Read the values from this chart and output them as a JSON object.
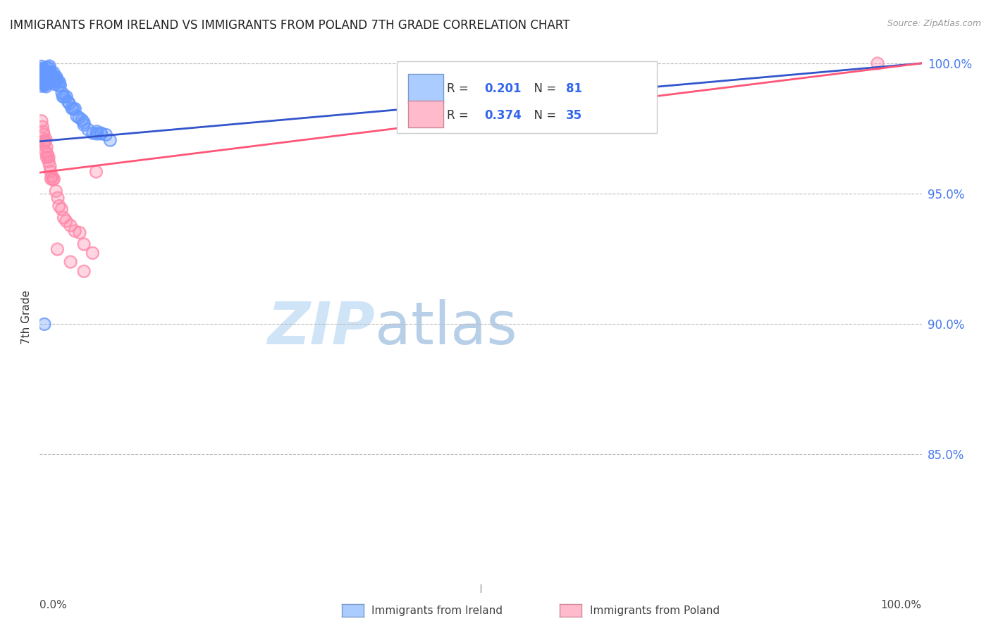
{
  "title": "IMMIGRANTS FROM IRELAND VS IMMIGRANTS FROM POLAND 7TH GRADE CORRELATION CHART",
  "source": "Source: ZipAtlas.com",
  "ylabel": "7th Grade",
  "ireland_R": 0.201,
  "ireland_N": 81,
  "poland_R": 0.374,
  "poland_N": 35,
  "ireland_color": "#6699ff",
  "poland_color": "#ff88aa",
  "ireland_line_color": "#3355cc",
  "poland_line_color": "#ff5577",
  "background_color": "#ffffff",
  "grid_color": "#bbbbbb",
  "xlim": [
    0.0,
    1.0
  ],
  "ylim": [
    0.8,
    1.005
  ],
  "yticks": [
    0.85,
    0.9,
    0.95,
    1.0
  ],
  "ireland_line_x0": 0.0,
  "ireland_line_y0": 0.97,
  "ireland_line_x1": 1.0,
  "ireland_line_y1": 1.0,
  "poland_line_x0": 0.0,
  "poland_line_y0": 0.958,
  "poland_line_x1": 1.0,
  "poland_line_y1": 1.0,
  "ireland_x": [
    0.001,
    0.001,
    0.002,
    0.002,
    0.002,
    0.002,
    0.003,
    0.003,
    0.003,
    0.003,
    0.004,
    0.004,
    0.004,
    0.004,
    0.004,
    0.005,
    0.005,
    0.005,
    0.005,
    0.005,
    0.006,
    0.006,
    0.006,
    0.006,
    0.007,
    0.007,
    0.007,
    0.008,
    0.008,
    0.008,
    0.008,
    0.009,
    0.009,
    0.009,
    0.01,
    0.01,
    0.01,
    0.011,
    0.011,
    0.011,
    0.012,
    0.012,
    0.013,
    0.013,
    0.014,
    0.014,
    0.015,
    0.015,
    0.016,
    0.016,
    0.017,
    0.018,
    0.018,
    0.019,
    0.02,
    0.021,
    0.022,
    0.023,
    0.025,
    0.026,
    0.028,
    0.03,
    0.032,
    0.034,
    0.036,
    0.038,
    0.04,
    0.042,
    0.045,
    0.048,
    0.05,
    0.055,
    0.06,
    0.065,
    0.07,
    0.075,
    0.08,
    0.05,
    0.065,
    0.07,
    0.005
  ],
  "ireland_y": [
    0.997,
    0.994,
    0.998,
    0.996,
    0.994,
    0.992,
    0.998,
    0.996,
    0.994,
    0.992,
    0.999,
    0.997,
    0.995,
    0.993,
    0.991,
    0.999,
    0.997,
    0.995,
    0.993,
    0.991,
    0.998,
    0.996,
    0.994,
    0.992,
    0.997,
    0.995,
    0.993,
    0.998,
    0.996,
    0.994,
    0.992,
    0.997,
    0.995,
    0.993,
    0.998,
    0.996,
    0.994,
    0.997,
    0.995,
    0.993,
    0.997,
    0.995,
    0.996,
    0.994,
    0.995,
    0.993,
    0.996,
    0.994,
    0.995,
    0.993,
    0.994,
    0.995,
    0.993,
    0.994,
    0.993,
    0.992,
    0.991,
    0.99,
    0.989,
    0.988,
    0.987,
    0.986,
    0.985,
    0.984,
    0.983,
    0.982,
    0.981,
    0.98,
    0.979,
    0.978,
    0.977,
    0.976,
    0.975,
    0.974,
    0.973,
    0.972,
    0.971,
    0.975,
    0.974,
    0.973,
    0.9
  ],
  "poland_x": [
    0.002,
    0.003,
    0.004,
    0.005,
    0.005,
    0.006,
    0.007,
    0.007,
    0.008,
    0.008,
    0.009,
    0.01,
    0.01,
    0.011,
    0.012,
    0.013,
    0.014,
    0.015,
    0.016,
    0.018,
    0.02,
    0.022,
    0.025,
    0.028,
    0.03,
    0.035,
    0.04,
    0.045,
    0.05,
    0.06,
    0.02,
    0.035,
    0.05,
    0.065,
    0.95
  ],
  "poland_y": [
    0.978,
    0.976,
    0.974,
    0.972,
    0.97,
    0.968,
    0.97,
    0.966,
    0.968,
    0.964,
    0.966,
    0.964,
    0.962,
    0.96,
    0.958,
    0.956,
    0.958,
    0.956,
    0.954,
    0.95,
    0.948,
    0.946,
    0.944,
    0.942,
    0.94,
    0.938,
    0.936,
    0.934,
    0.932,
    0.928,
    0.93,
    0.925,
    0.92,
    0.96,
    1.0
  ],
  "watermark_zip_color": "#d0e4f7",
  "watermark_atlas_color": "#b8cfe8"
}
